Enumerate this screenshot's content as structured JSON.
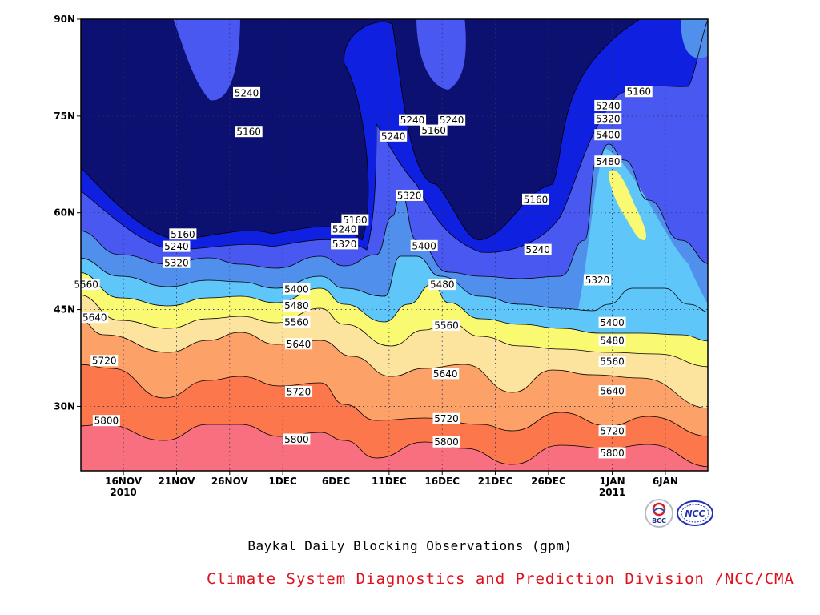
{
  "chart_data": {
    "type": "contour",
    "title": "Baykal Daily Blocking Observations (gpm)",
    "x_ticks": [
      {
        "line1": "16NOV",
        "line2": "2010",
        "day": 16
      },
      {
        "line1": "21NOV",
        "line2": "",
        "day": 21
      },
      {
        "line1": "26NOV",
        "line2": "",
        "day": 26
      },
      {
        "line1": "1DEC",
        "line2": "",
        "day": 31
      },
      {
        "line1": "6DEC",
        "line2": "",
        "day": 36
      },
      {
        "line1": "11DEC",
        "line2": "",
        "day": 41
      },
      {
        "line1": "16DEC",
        "line2": "",
        "day": 46
      },
      {
        "line1": "21DEC",
        "line2": "",
        "day": 51
      },
      {
        "line1": "26DEC",
        "line2": "",
        "day": 56
      },
      {
        "line1": "1JAN",
        "line2": "2011",
        "day": 62
      },
      {
        "line1": "6JAN",
        "line2": "",
        "day": 67
      }
    ],
    "x_range_days": [
      12,
      71
    ],
    "y_ticks": [
      {
        "label": "30N",
        "lat": 30
      },
      {
        "label": "45N",
        "lat": 45
      },
      {
        "label": "60N",
        "lat": 60
      },
      {
        "label": "75N",
        "lat": 75
      },
      {
        "label": "90N",
        "lat": 90
      }
    ],
    "y_range_lat": [
      20,
      90
    ],
    "contour_levels": [
      5160,
      5240,
      5320,
      5400,
      5480,
      5560,
      5640,
      5720,
      5800
    ],
    "fill_colors": [
      "#0c1070",
      "#1020e0",
      "#4a58f2",
      "#5090ec",
      "#5ec6f8",
      "#fafa72",
      "#fde49e",
      "#fca268",
      "#fc784c",
      "#f87080"
    ],
    "grid": "dotted",
    "contour_labels": [
      {
        "text": "5240",
        "day": 27.6,
        "lat": 78.6
      },
      {
        "text": "5160",
        "day": 27.8,
        "lat": 72.6
      },
      {
        "text": "5240",
        "day": 41.4,
        "lat": 71.9
      },
      {
        "text": "5240",
        "day": 43.2,
        "lat": 74.4
      },
      {
        "text": "5160",
        "day": 45.2,
        "lat": 72.8
      },
      {
        "text": "5240",
        "day": 46.9,
        "lat": 74.4
      },
      {
        "text": "5320",
        "day": 42.9,
        "lat": 62.7
      },
      {
        "text": "5400",
        "day": 44.3,
        "lat": 54.9
      },
      {
        "text": "5480",
        "day": 46.0,
        "lat": 48.9
      },
      {
        "text": "5560",
        "day": 46.4,
        "lat": 42.6
      },
      {
        "text": "5160",
        "day": 54.8,
        "lat": 62.1
      },
      {
        "text": "5240",
        "day": 55.0,
        "lat": 54.3
      },
      {
        "text": "5160",
        "day": 64.5,
        "lat": 78.8
      },
      {
        "text": "5240",
        "day": 61.6,
        "lat": 76.6
      },
      {
        "text": "5320",
        "day": 61.6,
        "lat": 74.6
      },
      {
        "text": "5400",
        "day": 61.6,
        "lat": 72.1
      },
      {
        "text": "5480",
        "day": 61.6,
        "lat": 68.0
      },
      {
        "text": "5320",
        "day": 60.6,
        "lat": 49.6
      },
      {
        "text": "5400",
        "day": 62.0,
        "lat": 43.0
      },
      {
        "text": "5480",
        "day": 62.0,
        "lat": 40.2
      },
      {
        "text": "5560",
        "day": 62.0,
        "lat": 37.0
      },
      {
        "text": "5640",
        "day": 62.0,
        "lat": 32.4
      },
      {
        "text": "5720",
        "day": 62.0,
        "lat": 26.2
      },
      {
        "text": "5800",
        "day": 62.0,
        "lat": 22.8
      },
      {
        "text": "5160",
        "day": 21.6,
        "lat": 56.7
      },
      {
        "text": "5240",
        "day": 21.0,
        "lat": 54.8
      },
      {
        "text": "5320",
        "day": 21.0,
        "lat": 52.3
      },
      {
        "text": "5400",
        "day": 32.3,
        "lat": 48.2
      },
      {
        "text": "5480",
        "day": 32.3,
        "lat": 45.6
      },
      {
        "text": "5560",
        "day": 32.3,
        "lat": 43.1
      },
      {
        "text": "5640",
        "day": 32.5,
        "lat": 39.7
      },
      {
        "text": "5720",
        "day": 32.5,
        "lat": 32.3
      },
      {
        "text": "5800",
        "day": 32.3,
        "lat": 24.9
      },
      {
        "text": "5240",
        "day": 36.8,
        "lat": 57.5
      },
      {
        "text": "5160",
        "day": 37.8,
        "lat": 58.9
      },
      {
        "text": "5320",
        "day": 36.8,
        "lat": 55.2
      },
      {
        "text": "5560",
        "day": 12.5,
        "lat": 48.9
      },
      {
        "text": "5640",
        "day": 13.3,
        "lat": 43.8
      },
      {
        "text": "5720",
        "day": 14.2,
        "lat": 37.1
      },
      {
        "text": "5800",
        "day": 14.4,
        "lat": 27.8
      },
      {
        "text": "5640",
        "day": 46.3,
        "lat": 35.1
      },
      {
        "text": "5720",
        "day": 46.4,
        "lat": 28.1
      },
      {
        "text": "5800",
        "day": 46.4,
        "lat": 24.5
      }
    ]
  },
  "footer": {
    "credit": "Climate System Diagnostics and Prediction Division /NCC/CMA",
    "credit_color": "#e0101c",
    "logo_left_text": "BCC",
    "logo_right_text": "NCC"
  }
}
